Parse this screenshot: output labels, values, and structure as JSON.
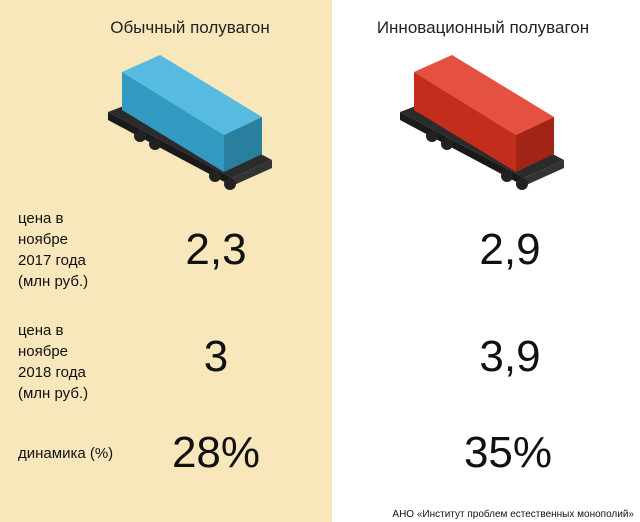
{
  "header": {
    "columns": [
      "Обычный полувагон",
      "Инновационный полувагон"
    ]
  },
  "table": {
    "rows": [
      {
        "label": "цена в\nноябре\n2017 года\n(млн руб.)",
        "values": [
          "2,3",
          "2,9"
        ]
      },
      {
        "label": "цена в\nноябре\n2018 года\n(млн руб.)",
        "values": [
          "3",
          "3,9"
        ]
      },
      {
        "label": "динамика (%)",
        "values": [
          "28%",
          "35%"
        ]
      }
    ]
  },
  "footer": {
    "source": "АНО «Институт проблем естественных монополий»"
  }
}
